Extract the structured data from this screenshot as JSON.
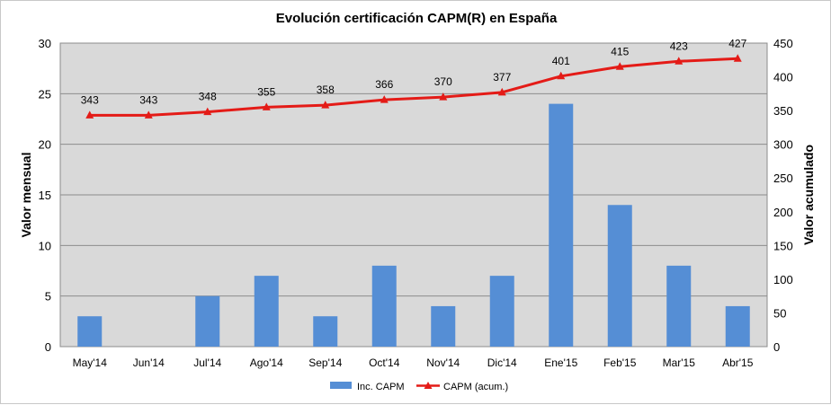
{
  "chart_data": {
    "type": "bar",
    "title": "Evolución certificación CAPM(R) en España",
    "categories": [
      "May'14",
      "Jun'14",
      "Jul'14",
      "Ago'14",
      "Sep'14",
      "Oct'14",
      "Nov'14",
      "Dic'14",
      "Ene'15",
      "Feb'15",
      "Mar'15",
      "Abr'15"
    ],
    "series": [
      {
        "name": "Inc. CAPM",
        "type": "bar",
        "axis": "left",
        "color": "#558ED5",
        "values": [
          3,
          0,
          5,
          7,
          3,
          8,
          4,
          7,
          24,
          14,
          8,
          4
        ]
      },
      {
        "name": "CAPM (acum.)",
        "type": "line",
        "axis": "right",
        "color": "#E41B17",
        "values": [
          343,
          343,
          348,
          355,
          358,
          366,
          370,
          377,
          401,
          415,
          423,
          427
        ]
      }
    ],
    "ylabel": "Valor mensual",
    "y2label": "Valor acumulado",
    "ylim": [
      0,
      30
    ],
    "y2lim": [
      0,
      450
    ],
    "yticks": [
      "0",
      "5",
      "10",
      "15",
      "20",
      "25",
      "30"
    ],
    "y2ticks": [
      "0",
      "50",
      "100",
      "150",
      "200",
      "250",
      "300",
      "350",
      "400",
      "450"
    ],
    "grid": true,
    "legend": "bottom",
    "plot_background": "#D9D9D9"
  }
}
